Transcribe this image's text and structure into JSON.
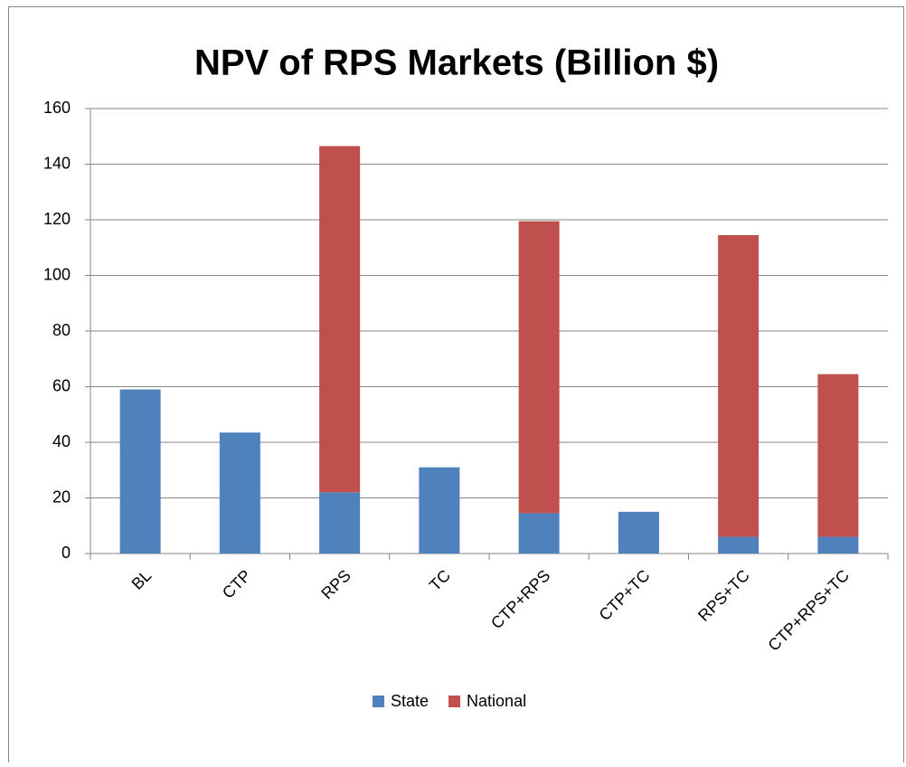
{
  "chart_data": {
    "type": "stacked-bar",
    "title": "NPV of RPS Markets (Billion $)",
    "categories": [
      "BL",
      "CTP",
      "RPS",
      "TC",
      "CTP+RPS",
      "CTP+TC",
      "RPS+TC",
      "CTP+RPS+TC"
    ],
    "series": [
      {
        "name": "State",
        "color": "#4f81bd",
        "values": [
          59,
          43.5,
          22,
          31,
          14.5,
          15,
          6,
          6
        ]
      },
      {
        "name": "National",
        "color": "#c0504d",
        "values": [
          0,
          0,
          124.5,
          0,
          105,
          0,
          108.5,
          58.5
        ]
      }
    ],
    "ylim": [
      0,
      160
    ],
    "yticks": [
      0,
      20,
      40,
      60,
      80,
      100,
      120,
      140,
      160
    ],
    "grid": true,
    "legend": "bottom"
  }
}
